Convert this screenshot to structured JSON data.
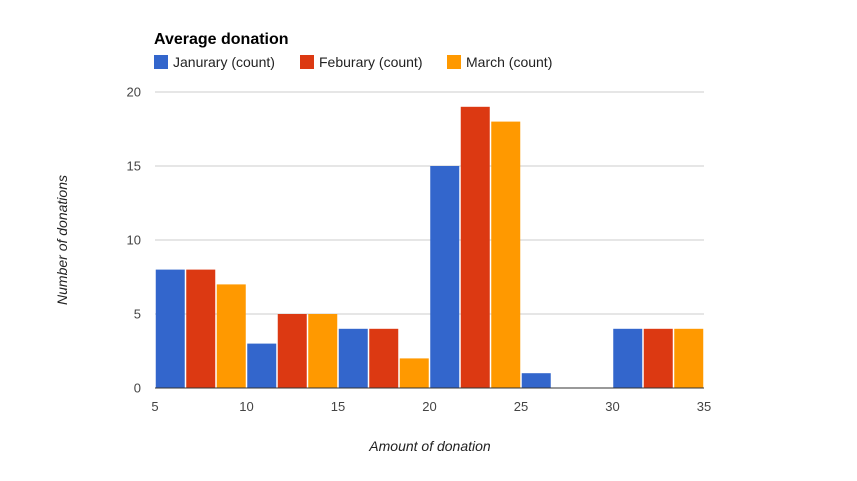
{
  "chart_data": {
    "type": "bar",
    "title": "Average donation",
    "xlabel": "Amount of donation",
    "ylabel": "Number of donations",
    "xlim": [
      5,
      35
    ],
    "ylim": [
      0,
      20
    ],
    "x_ticks": [
      "5",
      "10",
      "15",
      "20",
      "25",
      "30",
      "35"
    ],
    "y_ticks": [
      "0",
      "5",
      "10",
      "15",
      "20"
    ],
    "bins": [
      [
        5,
        10
      ],
      [
        10,
        15
      ],
      [
        15,
        20
      ],
      [
        20,
        25
      ],
      [
        25,
        30
      ],
      [
        30,
        35
      ]
    ],
    "legend_position": "top-left",
    "grid": true,
    "series": [
      {
        "name": "Janurary (count)",
        "color": "#3366cc",
        "values": [
          8,
          3,
          4,
          15,
          1,
          4
        ]
      },
      {
        "name": "Feburary (count)",
        "color": "#dc3912",
        "values": [
          8,
          5,
          4,
          19,
          0,
          4
        ]
      },
      {
        "name": "March (count)",
        "color": "#ff9900",
        "values": [
          7,
          5,
          2,
          18,
          0,
          4
        ]
      }
    ]
  }
}
